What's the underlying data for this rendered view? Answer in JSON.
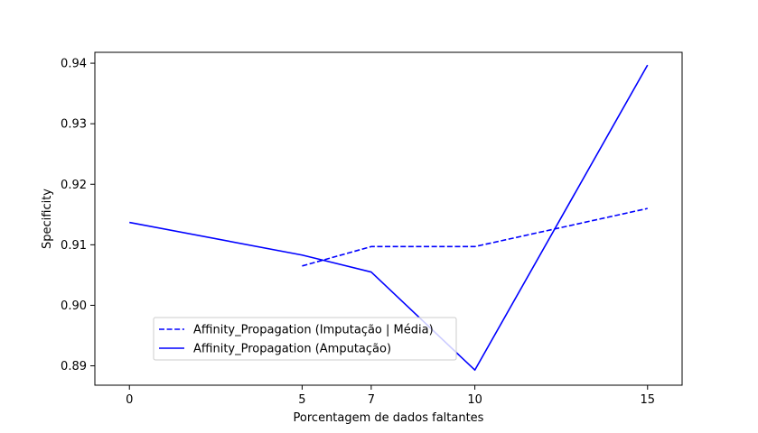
{
  "chart_data": {
    "type": "line",
    "xlabel": "Porcentagem de dados faltantes",
    "ylabel": "Specificity",
    "xlim": [
      -1,
      16
    ],
    "ylim": [
      0.8868,
      0.9418
    ],
    "xticks": [
      0,
      5,
      7,
      10,
      15
    ],
    "yticks": [
      0.89,
      0.9,
      0.91,
      0.92,
      0.93,
      0.94
    ],
    "ytick_labels": [
      "0.89",
      "0.90",
      "0.91",
      "0.92",
      "0.93",
      "0.94"
    ],
    "grid": false,
    "legend_position": "lower-left",
    "series": [
      {
        "name": "Affinity_Propagation (Imputação | Média)",
        "style": "dashed",
        "color": "#0000ff",
        "x": [
          5,
          7,
          10,
          15
        ],
        "y": [
          0.9065,
          0.9097,
          0.9097,
          0.916
        ]
      },
      {
        "name": "Affinity_Propagation (Amputação)",
        "style": "solid",
        "color": "#0000ff",
        "x": [
          0,
          5,
          7,
          10,
          15
        ],
        "y": [
          0.9137,
          0.9083,
          0.9055,
          0.8893,
          0.9397
        ]
      }
    ]
  }
}
